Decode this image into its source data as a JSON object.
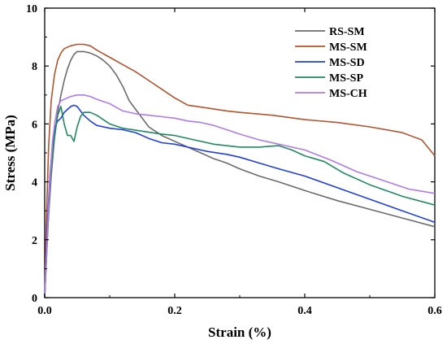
{
  "chart_data": {
    "type": "line",
    "title": "",
    "xlabel": "Strain (%)",
    "ylabel": "Stress (MPa)",
    "xlim": [
      0.0,
      0.6
    ],
    "ylim": [
      0,
      10
    ],
    "xticks": [
      "0.0",
      "0.2",
      "0.4",
      "0.6"
    ],
    "yticks": [
      "0",
      "2",
      "4",
      "6",
      "8",
      "10"
    ],
    "grid": false,
    "legend_position": "top-right",
    "series": [
      {
        "name": "RS-SM",
        "color": "#6b6b6b",
        "points": [
          [
            0,
            0
          ],
          [
            0.005,
            2.5
          ],
          [
            0.01,
            4.2
          ],
          [
            0.015,
            5.5
          ],
          [
            0.02,
            6.4
          ],
          [
            0.025,
            7.0
          ],
          [
            0.03,
            7.5
          ],
          [
            0.035,
            7.9
          ],
          [
            0.04,
            8.2
          ],
          [
            0.045,
            8.4
          ],
          [
            0.05,
            8.5
          ],
          [
            0.06,
            8.5
          ],
          [
            0.07,
            8.45
          ],
          [
            0.08,
            8.35
          ],
          [
            0.09,
            8.2
          ],
          [
            0.1,
            8.0
          ],
          [
            0.11,
            7.7
          ],
          [
            0.12,
            7.3
          ],
          [
            0.13,
            6.8
          ],
          [
            0.14,
            6.5
          ],
          [
            0.15,
            6.2
          ],
          [
            0.16,
            5.9
          ],
          [
            0.18,
            5.6
          ],
          [
            0.2,
            5.4
          ],
          [
            0.22,
            5.2
          ],
          [
            0.24,
            5.0
          ],
          [
            0.26,
            4.8
          ],
          [
            0.28,
            4.65
          ],
          [
            0.3,
            4.45
          ],
          [
            0.33,
            4.2
          ],
          [
            0.36,
            4.0
          ],
          [
            0.4,
            3.7
          ],
          [
            0.45,
            3.35
          ],
          [
            0.5,
            3.05
          ],
          [
            0.55,
            2.75
          ],
          [
            0.6,
            2.45
          ]
        ]
      },
      {
        "name": "MS-SM",
        "color": "#b5532e",
        "points": [
          [
            0,
            0
          ],
          [
            0.003,
            3.0
          ],
          [
            0.006,
            5.2
          ],
          [
            0.01,
            6.8
          ],
          [
            0.015,
            7.7
          ],
          [
            0.02,
            8.2
          ],
          [
            0.025,
            8.45
          ],
          [
            0.03,
            8.6
          ],
          [
            0.04,
            8.7
          ],
          [
            0.05,
            8.75
          ],
          [
            0.06,
            8.75
          ],
          [
            0.07,
            8.7
          ],
          [
            0.08,
            8.55
          ],
          [
            0.1,
            8.3
          ],
          [
            0.12,
            8.05
          ],
          [
            0.14,
            7.8
          ],
          [
            0.16,
            7.5
          ],
          [
            0.18,
            7.2
          ],
          [
            0.2,
            6.9
          ],
          [
            0.22,
            6.65
          ],
          [
            0.25,
            6.55
          ],
          [
            0.28,
            6.45
          ],
          [
            0.3,
            6.4
          ],
          [
            0.35,
            6.3
          ],
          [
            0.4,
            6.15
          ],
          [
            0.45,
            6.05
          ],
          [
            0.5,
            5.9
          ],
          [
            0.55,
            5.7
          ],
          [
            0.58,
            5.45
          ],
          [
            0.6,
            4.9
          ]
        ]
      },
      {
        "name": "MS-SD",
        "color": "#1f3fe0",
        "points": [
          [
            0,
            0
          ],
          [
            0.004,
            2.5
          ],
          [
            0.008,
            4.2
          ],
          [
            0.012,
            5.3
          ],
          [
            0.016,
            5.9
          ],
          [
            0.02,
            6.1
          ],
          [
            0.025,
            6.2
          ],
          [
            0.03,
            6.4
          ],
          [
            0.035,
            6.5
          ],
          [
            0.04,
            6.6
          ],
          [
            0.045,
            6.65
          ],
          [
            0.05,
            6.6
          ],
          [
            0.06,
            6.3
          ],
          [
            0.07,
            6.1
          ],
          [
            0.08,
            5.95
          ],
          [
            0.1,
            5.85
          ],
          [
            0.12,
            5.8
          ],
          [
            0.14,
            5.7
          ],
          [
            0.16,
            5.5
          ],
          [
            0.18,
            5.35
          ],
          [
            0.2,
            5.3
          ],
          [
            0.22,
            5.2
          ],
          [
            0.25,
            5.05
          ],
          [
            0.28,
            4.95
          ],
          [
            0.3,
            4.85
          ],
          [
            0.33,
            4.65
          ],
          [
            0.36,
            4.45
          ],
          [
            0.4,
            4.2
          ],
          [
            0.45,
            3.8
          ],
          [
            0.5,
            3.4
          ],
          [
            0.55,
            3.0
          ],
          [
            0.6,
            2.6
          ]
        ]
      },
      {
        "name": "MS-SP",
        "color": "#1f8a5f",
        "points": [
          [
            0,
            0
          ],
          [
            0.004,
            2.0
          ],
          [
            0.008,
            3.8
          ],
          [
            0.012,
            5.0
          ],
          [
            0.016,
            5.7
          ],
          [
            0.02,
            6.3
          ],
          [
            0.025,
            6.6
          ],
          [
            0.03,
            6.0
          ],
          [
            0.035,
            5.6
          ],
          [
            0.04,
            5.6
          ],
          [
            0.045,
            5.4
          ],
          [
            0.05,
            5.9
          ],
          [
            0.055,
            6.25
          ],
          [
            0.06,
            6.4
          ],
          [
            0.07,
            6.4
          ],
          [
            0.08,
            6.3
          ],
          [
            0.09,
            6.15
          ],
          [
            0.1,
            6.0
          ],
          [
            0.12,
            5.85
          ],
          [
            0.15,
            5.75
          ],
          [
            0.18,
            5.65
          ],
          [
            0.2,
            5.6
          ],
          [
            0.23,
            5.45
          ],
          [
            0.26,
            5.3
          ],
          [
            0.3,
            5.2
          ],
          [
            0.33,
            5.2
          ],
          [
            0.36,
            5.25
          ],
          [
            0.38,
            5.1
          ],
          [
            0.4,
            4.9
          ],
          [
            0.43,
            4.7
          ],
          [
            0.46,
            4.3
          ],
          [
            0.5,
            3.9
          ],
          [
            0.55,
            3.5
          ],
          [
            0.6,
            3.2
          ]
        ]
      },
      {
        "name": "MS-CH",
        "color": "#b07be8",
        "points": [
          [
            0,
            0
          ],
          [
            0.004,
            2.2
          ],
          [
            0.008,
            4.0
          ],
          [
            0.012,
            5.4
          ],
          [
            0.016,
            6.1
          ],
          [
            0.02,
            6.6
          ],
          [
            0.025,
            6.8
          ],
          [
            0.03,
            6.85
          ],
          [
            0.04,
            6.95
          ],
          [
            0.05,
            7.0
          ],
          [
            0.06,
            7.0
          ],
          [
            0.07,
            6.95
          ],
          [
            0.08,
            6.85
          ],
          [
            0.1,
            6.7
          ],
          [
            0.12,
            6.45
          ],
          [
            0.14,
            6.35
          ],
          [
            0.16,
            6.3
          ],
          [
            0.18,
            6.25
          ],
          [
            0.2,
            6.2
          ],
          [
            0.22,
            6.1
          ],
          [
            0.24,
            6.05
          ],
          [
            0.26,
            5.95
          ],
          [
            0.28,
            5.8
          ],
          [
            0.3,
            5.65
          ],
          [
            0.33,
            5.45
          ],
          [
            0.36,
            5.3
          ],
          [
            0.4,
            5.1
          ],
          [
            0.44,
            4.75
          ],
          [
            0.48,
            4.35
          ],
          [
            0.52,
            4.05
          ],
          [
            0.56,
            3.75
          ],
          [
            0.6,
            3.6
          ]
        ]
      }
    ]
  }
}
